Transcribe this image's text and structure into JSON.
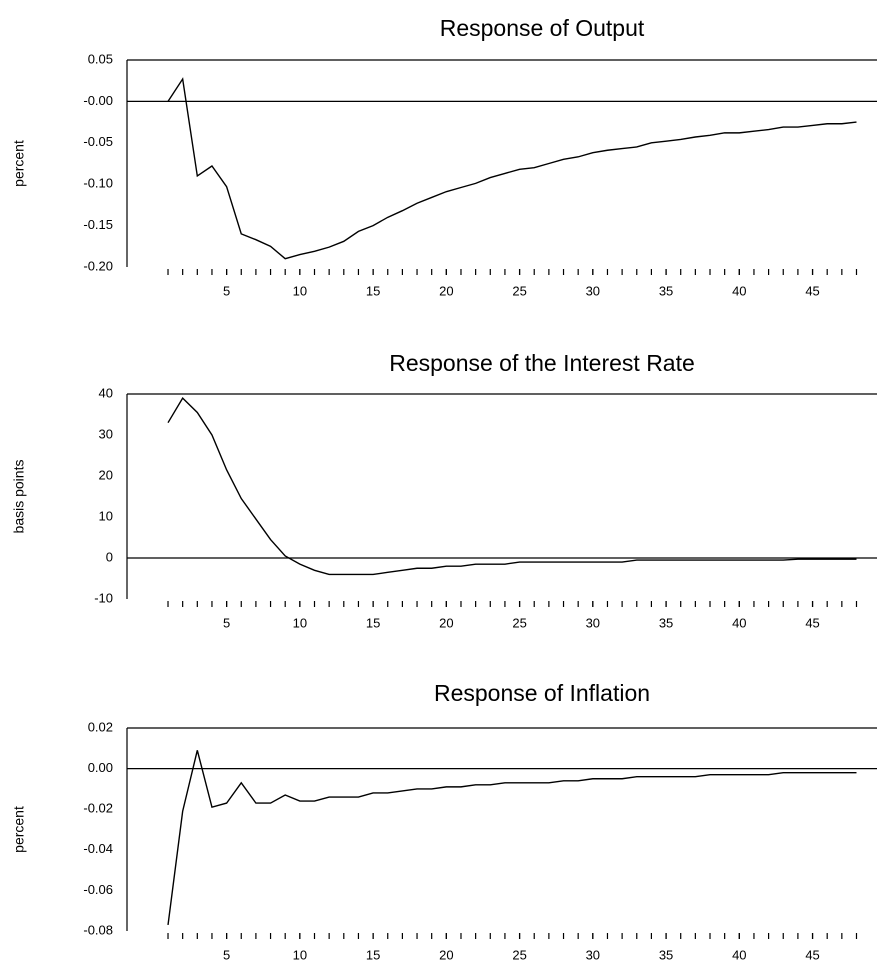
{
  "chart_data": [
    {
      "type": "line",
      "title": "Response of Output",
      "y_label": "percent",
      "x": [
        1,
        2,
        3,
        4,
        5,
        6,
        7,
        8,
        9,
        10,
        11,
        12,
        13,
        14,
        15,
        16,
        17,
        18,
        19,
        20,
        21,
        22,
        23,
        24,
        25,
        26,
        27,
        28,
        29,
        30,
        31,
        32,
        33,
        34,
        35,
        36,
        37,
        38,
        39,
        40,
        41,
        42,
        43,
        44,
        45,
        46,
        47,
        48
      ],
      "values": [
        0.0,
        0.027,
        -0.09,
        -0.078,
        -0.103,
        -0.16,
        -0.167,
        -0.175,
        -0.19,
        -0.185,
        -0.181,
        -0.176,
        -0.169,
        -0.157,
        -0.15,
        -0.14,
        -0.132,
        -0.123,
        -0.116,
        -0.109,
        -0.104,
        -0.099,
        -0.092,
        -0.087,
        -0.082,
        -0.08,
        -0.075,
        -0.07,
        -0.067,
        -0.062,
        -0.059,
        -0.057,
        -0.055,
        -0.05,
        -0.048,
        -0.046,
        -0.043,
        -0.041,
        -0.038,
        -0.038,
        -0.036,
        -0.034,
        -0.031,
        -0.031,
        -0.029,
        -0.027,
        -0.027,
        -0.025
      ],
      "color": "#000000",
      "xlim": [
        -1.8,
        49.4
      ],
      "xticks": [
        5,
        10,
        15,
        20,
        25,
        30,
        35,
        40,
        45
      ],
      "ylim": [
        -0.2,
        0.05
      ],
      "yticks": [
        0.05,
        {
          "value": 0,
          "label": "-0.00"
        },
        -0.05,
        {
          "value": -0.1,
          "label": "-0.10"
        },
        -0.15,
        {
          "value": -0.2,
          "label": "-0.20"
        }
      ]
    },
    {
      "type": "line",
      "title": "Response of the Interest Rate",
      "y_label": "basis points",
      "x": [
        1,
        2,
        3,
        4,
        5,
        6,
        7,
        8,
        9,
        10,
        11,
        12,
        13,
        14,
        15,
        16,
        17,
        18,
        19,
        20,
        21,
        22,
        23,
        24,
        25,
        26,
        27,
        28,
        29,
        30,
        31,
        32,
        33,
        34,
        35,
        36,
        37,
        38,
        39,
        40,
        41,
        42,
        43,
        44,
        45,
        46,
        47,
        48
      ],
      "values": [
        33,
        39,
        35.5,
        30,
        21.5,
        14.5,
        9.5,
        4.5,
        0.5,
        -1.5,
        -3,
        -4,
        -4,
        -4,
        -4,
        -3.5,
        -3,
        -2.5,
        -2.5,
        -2,
        -2,
        -1.5,
        -1.5,
        -1.5,
        -1,
        -1,
        -1,
        -1,
        -1,
        -1,
        -1,
        -1,
        -0.5,
        -0.5,
        -0.5,
        -0.5,
        -0.5,
        -0.5,
        -0.5,
        -0.5,
        -0.5,
        -0.5,
        -0.5,
        -0.3,
        -0.3,
        -0.3,
        -0.3,
        -0.3
      ],
      "color": "#000000",
      "xlim": [
        -1.8,
        49.4
      ],
      "xticks": [
        5,
        10,
        15,
        20,
        25,
        30,
        35,
        40,
        45
      ],
      "ylim": [
        -10,
        40
      ],
      "yticks": [
        40,
        30,
        20,
        10,
        0,
        -10
      ]
    },
    {
      "type": "line",
      "title": "Response of Inflation",
      "y_label": "percent",
      "x": [
        1,
        2,
        3,
        4,
        5,
        6,
        7,
        8,
        9,
        10,
        11,
        12,
        13,
        14,
        15,
        16,
        17,
        18,
        19,
        20,
        21,
        22,
        23,
        24,
        25,
        26,
        27,
        28,
        29,
        30,
        31,
        32,
        33,
        34,
        35,
        36,
        37,
        38,
        39,
        40,
        41,
        42,
        43,
        44,
        45,
        46,
        47,
        48
      ],
      "values": [
        -0.077,
        -0.021,
        0.009,
        -0.019,
        -0.017,
        -0.007,
        -0.017,
        -0.017,
        -0.013,
        -0.016,
        -0.016,
        -0.014,
        -0.014,
        -0.014,
        -0.012,
        -0.012,
        -0.011,
        -0.01,
        -0.01,
        -0.009,
        -0.009,
        -0.008,
        -0.008,
        -0.007,
        -0.007,
        -0.007,
        -0.007,
        -0.006,
        -0.006,
        -0.005,
        -0.005,
        -0.005,
        -0.004,
        -0.004,
        -0.004,
        -0.004,
        -0.004,
        -0.003,
        -0.003,
        -0.003,
        -0.003,
        -0.003,
        -0.002,
        -0.002,
        -0.002,
        -0.002,
        -0.002,
        -0.002
      ],
      "color": "#000000",
      "xlim": [
        -1.8,
        49.4
      ],
      "xticks": [
        5,
        10,
        15,
        20,
        25,
        30,
        35,
        40,
        45
      ],
      "ylim": [
        -0.08,
        0.02
      ],
      "yticks": [
        0.02,
        {
          "value": 0,
          "label": "0.00"
        },
        -0.02,
        -0.04,
        -0.06,
        -0.08
      ]
    }
  ]
}
